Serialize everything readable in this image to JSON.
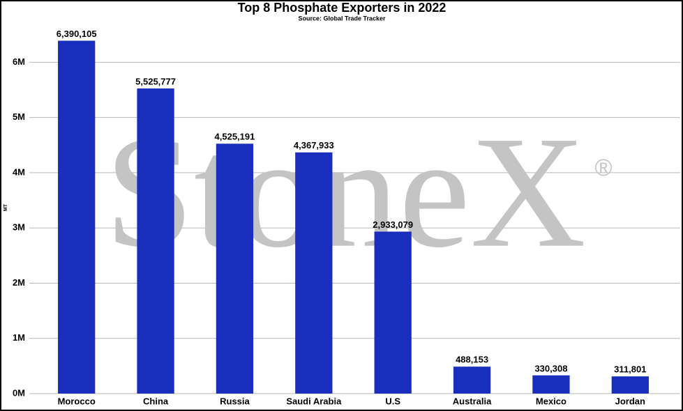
{
  "chart_data": {
    "type": "bar",
    "title": "Top 8 Phosphate Exporters in 2022",
    "subtitle": "Source: Global Trade Tracker",
    "ylabel": "MT",
    "watermark": "StoneX",
    "watermark_mark": "®",
    "categories": [
      "Morocco",
      "China",
      "Russia",
      "Saudi Arabia",
      "U.S",
      "Australia",
      "Mexico",
      "Jordan"
    ],
    "values": [
      6390105,
      5525777,
      4525191,
      4367933,
      2933079,
      488153,
      330308,
      311801
    ],
    "value_labels": [
      "6,390,105",
      "5,525,777",
      "4,525,191",
      "4,367,933",
      "2,933,079",
      "488,153",
      "330,308",
      "311,801"
    ],
    "color": "#1a2ebd",
    "ylim": [
      0,
      6850000
    ],
    "yticks": [
      {
        "value": 0,
        "label": "0M"
      },
      {
        "value": 1000000,
        "label": "1M"
      },
      {
        "value": 2000000,
        "label": "2M"
      },
      {
        "value": 3000000,
        "label": "3M"
      },
      {
        "value": 4000000,
        "label": "4M"
      },
      {
        "value": 5000000,
        "label": "5M"
      },
      {
        "value": 6000000,
        "label": "6M"
      }
    ],
    "grid": true
  }
}
